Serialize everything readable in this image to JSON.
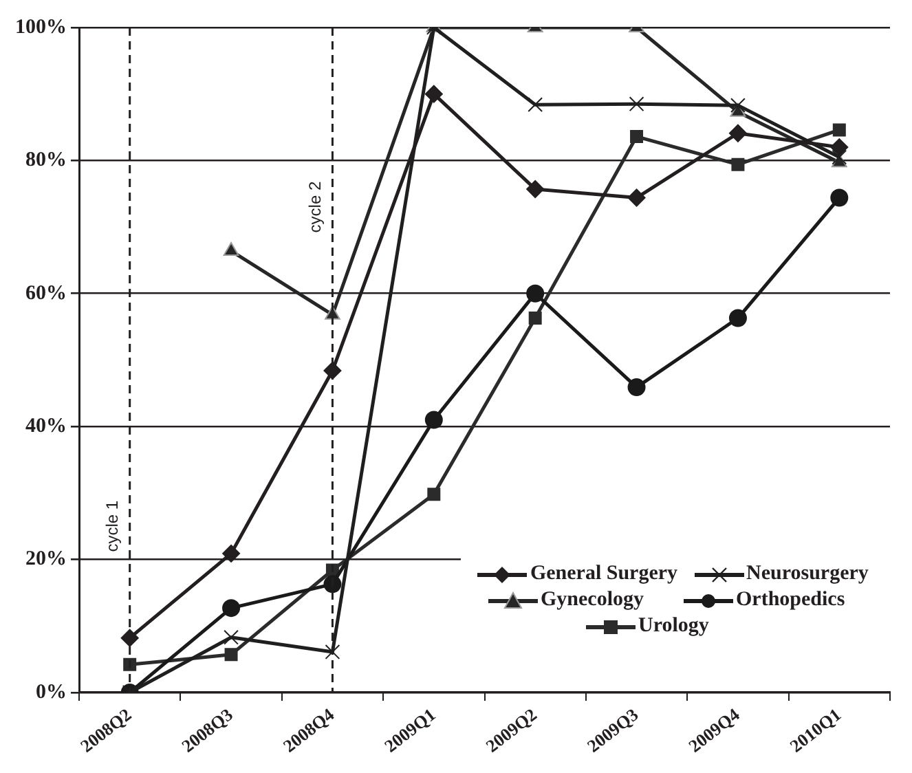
{
  "chart_data": {
    "type": "line",
    "categories": [
      "2008Q2",
      "2008Q3",
      "2008Q4",
      "2009Q1",
      "2009Q2",
      "2009Q3",
      "2009Q4",
      "2010Q1"
    ],
    "series": [
      {
        "name": "General Surgery",
        "color": "#231f20",
        "marker": "diamond",
        "values": [
          8.2,
          20.9,
          48.4,
          90,
          75.7,
          74.4,
          84.1,
          82
        ]
      },
      {
        "name": "Neurosurgery",
        "color": "#1f1f1f",
        "marker": "cross",
        "values": [
          0,
          8.3,
          6.1,
          100,
          88.4,
          88.5,
          88.3,
          80.5
        ]
      },
      {
        "name": "Gynecology",
        "color": "#262626",
        "marker": "triangle",
        "values": [
          null,
          66.4,
          56.8,
          100,
          100,
          100,
          87.3,
          79.7
        ]
      },
      {
        "name": "Orthopedics",
        "color": "#1a1a1a",
        "marker": "circle",
        "values": [
          0,
          12.7,
          16.3,
          41,
          60,
          45.9,
          56.3,
          74.4
        ]
      },
      {
        "name": "Urology",
        "color": "#2b2b2b",
        "marker": "square",
        "values": [
          4.2,
          5.7,
          18.4,
          29.8,
          56.3,
          83.6,
          79.4,
          84.6
        ]
      }
    ],
    "ylim": [
      0,
      100
    ],
    "yticks": [
      {
        "value": 0,
        "label": "0%"
      },
      {
        "value": 20,
        "label": "20%"
      },
      {
        "value": 40,
        "label": "40%"
      },
      {
        "value": 60,
        "label": "60%"
      },
      {
        "value": 80,
        "label": "80%"
      },
      {
        "value": 100,
        "label": "100%"
      }
    ],
    "grid": "y",
    "legend": "bottom right",
    "line_style": "solid",
    "ref_lines": [
      {
        "axis": "x",
        "value": "2008Q2",
        "label": "cycle 1",
        "line_style": "dashed",
        "color": "#231f20"
      },
      {
        "axis": "x",
        "value": "2008Q4",
        "label": "cycle 2",
        "line_style": "dashed",
        "color": "#231f20"
      }
    ]
  }
}
